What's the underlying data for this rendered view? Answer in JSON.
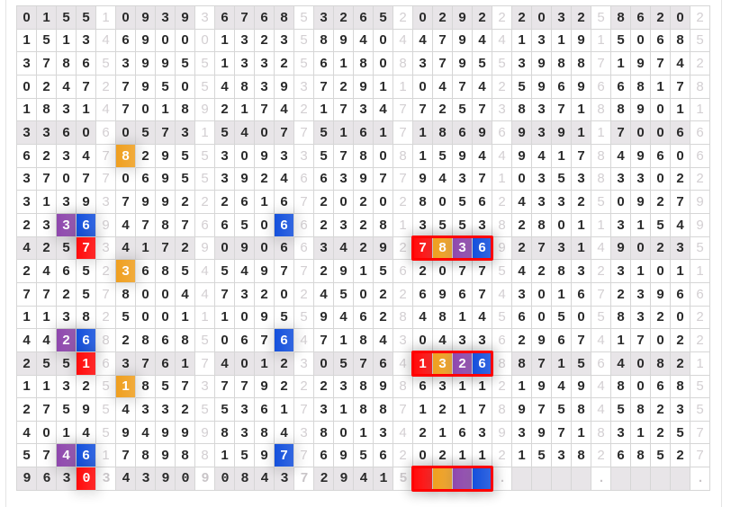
{
  "colors": {
    "red": "#ff0a0a",
    "orange": "#ef9f1f",
    "purple": "#8e47ad",
    "blue": "#1450dc",
    "shade": "#e8e5e8",
    "box": "#ff0000"
  },
  "grid": {
    "rows": [
      "01551093936768532652029222032586202",
      "15134690001323589404479441319150685",
      "37865399551332561808379553988719742",
      "02472795054839372911047425969668178",
      "18314701892174217347725738371889011",
      "33606057315407751617186969391170066",
      "62347829553093357808159449417849606",
      "37077069553924663977943710353833022",
      "31393799222616720202805624332509279",
      "23369478766506623281355382801131549",
      "42573417290906634292783692731490235",
      "24652368545497729156207754283231011",
      "77257800447320245022696743016723966",
      "11382500111095594628481456050583202",
      "44268286850676471843043362967417022",
      "25516376174012305764132688715640821",
      "11325185737792223898631121949480685",
      "27595433255361731887121789758458235",
      "40145949998384380134216393971831257",
      "57461789881597769562021121538268527",
      "96303439090843729415    .    .    ."
    ],
    "highlights": [
      {
        "row": 6,
        "col": 5,
        "color": "orange"
      },
      {
        "row": 9,
        "col": 2,
        "color": "purple"
      },
      {
        "row": 9,
        "col": 3,
        "color": "blue"
      },
      {
        "row": 9,
        "col": 13,
        "color": "blue"
      },
      {
        "row": 10,
        "col": 3,
        "color": "red"
      },
      {
        "row": 10,
        "col": 20,
        "color": "red"
      },
      {
        "row": 10,
        "col": 21,
        "color": "orange"
      },
      {
        "row": 10,
        "col": 22,
        "color": "purple"
      },
      {
        "row": 10,
        "col": 23,
        "color": "blue"
      },
      {
        "row": 11,
        "col": 5,
        "color": "orange"
      },
      {
        "row": 14,
        "col": 2,
        "color": "purple"
      },
      {
        "row": 14,
        "col": 3,
        "color": "blue"
      },
      {
        "row": 14,
        "col": 13,
        "color": "blue"
      },
      {
        "row": 15,
        "col": 3,
        "color": "red"
      },
      {
        "row": 15,
        "col": 20,
        "color": "red"
      },
      {
        "row": 15,
        "col": 21,
        "color": "orange"
      },
      {
        "row": 15,
        "col": 22,
        "color": "purple"
      },
      {
        "row": 15,
        "col": 23,
        "color": "blue"
      },
      {
        "row": 16,
        "col": 5,
        "color": "orange"
      },
      {
        "row": 19,
        "col": 2,
        "color": "purple"
      },
      {
        "row": 19,
        "col": 3,
        "color": "blue"
      },
      {
        "row": 19,
        "col": 13,
        "color": "blue"
      },
      {
        "row": 20,
        "col": 3,
        "color": "red"
      },
      {
        "row": 20,
        "col": 20,
        "color": "red"
      },
      {
        "row": 20,
        "col": 21,
        "color": "orange"
      },
      {
        "row": 20,
        "col": 22,
        "color": "purple"
      },
      {
        "row": 20,
        "col": 23,
        "color": "blue"
      }
    ],
    "boxed_rows": [
      10,
      15,
      20
    ]
  }
}
